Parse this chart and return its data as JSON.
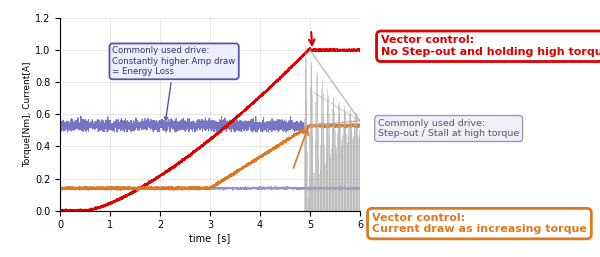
{
  "xlabel": "time  [s]",
  "ylabel": "Torque[Nm], Current[A]",
  "xlim": [
    0,
    6
  ],
  "ylim": [
    0,
    1.2
  ],
  "yticks": [
    0.0,
    0.2,
    0.4,
    0.6,
    0.8,
    1.0,
    1.2
  ],
  "xticks": [
    0,
    1,
    2,
    3,
    4,
    5,
    6
  ],
  "open_torque_color": "#6666bb",
  "open_current_color": "#6666bb",
  "vc_torque_color": "#dd0000",
  "vc_current_color": "#e07820",
  "oscillation_color": "#aaaaaa",
  "conv_line_color": "#aaaaaa",
  "grid_color": "#cccccc",
  "bg_color": "#ffffff",
  "box_blue_edge": "#5555aa",
  "box_blue_face": "#eeeeff",
  "box_blue_text": "#333366",
  "box_red_edge": "#dd0000",
  "box_red_face": "#ffffff",
  "box_red_text": "#dd0000",
  "box_gray_edge": "#9999bb",
  "box_gray_face": "#f0f0f8",
  "box_gray_text": "#555577",
  "box_orange_edge": "#e07820",
  "box_orange_face": "#ffffff",
  "box_orange_text": "#e07820"
}
